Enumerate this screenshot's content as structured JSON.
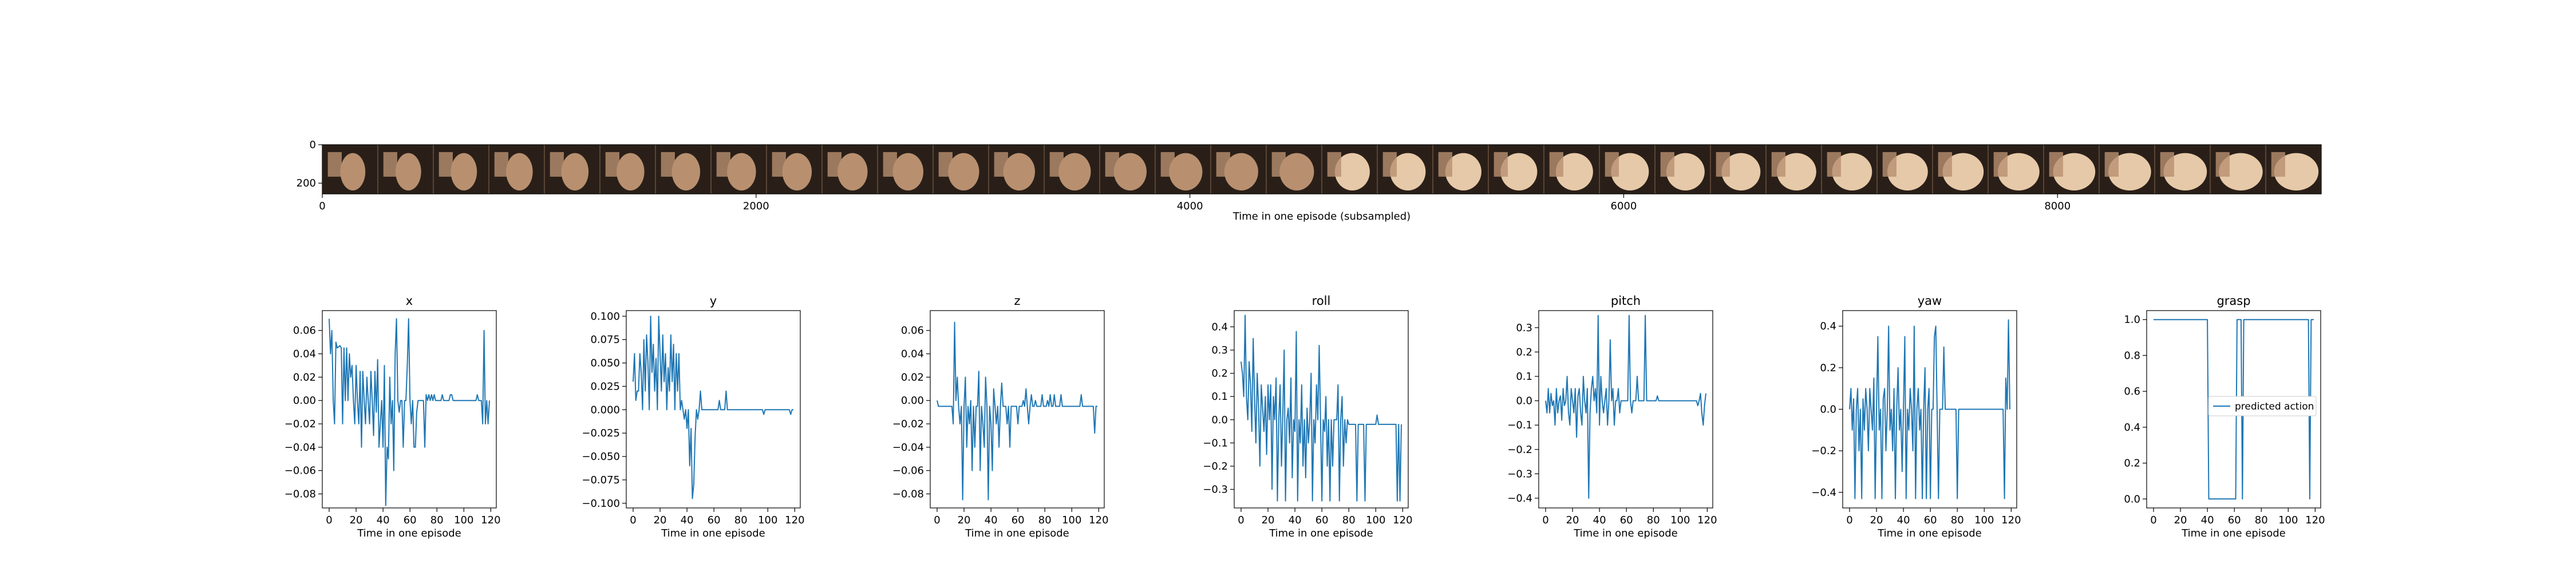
{
  "chart_data": [
    {
      "type": "image-strip",
      "xlabel": "Time in one episode (subsampled)",
      "xlim": [
        0,
        9216
      ],
      "ylim": [
        256,
        0
      ],
      "xticks": [
        0,
        2000,
        4000,
        6000,
        8000
      ],
      "yticks": [
        0,
        200
      ],
      "frames": 36,
      "colors": {
        "background": "#5a4535",
        "mid": "#b89070",
        "light": "#e6c9a8",
        "dark": "#2a1f18"
      }
    },
    {
      "type": "line",
      "title": "x",
      "xlabel": "Time in one episode",
      "ylim": [
        -0.092,
        0.077
      ],
      "xticks": [
        0,
        20,
        40,
        60,
        80,
        100,
        120
      ],
      "yticks": [
        0.06,
        0.04,
        0.02,
        0.0,
        -0.02,
        -0.04,
        -0.06,
        -0.08
      ],
      "ytick_labels": [
        "0.06",
        "0.04",
        "0.02",
        "0.00",
        "−0.02",
        "−0.04",
        "−0.06",
        "−0.08"
      ],
      "y": [
        0.07,
        0.04,
        0.06,
        0.0,
        -0.02,
        0.05,
        0.045,
        0.046,
        0.047,
        0.045,
        -0.02,
        0.045,
        0.0,
        0.045,
        0.0,
        0.04,
        0.02,
        0.03,
        0.0,
        -0.02,
        0.03,
        0.0,
        -0.02,
        0.025,
        -0.04,
        0.025,
        0.0,
        -0.02,
        0.02,
        0.0,
        -0.02,
        0.025,
        0.0,
        -0.03,
        0.025,
        -0.01,
        0.035,
        -0.04,
        -0.02,
        0.0,
        -0.04,
        0.03,
        -0.09,
        -0.04,
        -0.05,
        0.02,
        -0.02,
        0.0,
        -0.06,
        0.04,
        0.07,
        0.0,
        -0.01,
        0.0,
        0.0,
        -0.04,
        0.0,
        0.0,
        0.03,
        0.07,
        0.0,
        -0.02,
        0.0,
        -0.04,
        -0.04,
        -0.01,
        0.0,
        0.0,
        0.0,
        0.0,
        0.0,
        -0.04,
        0.005,
        0.0,
        0.005,
        0.0,
        0.005,
        0.0,
        0.005,
        0.0,
        0.0,
        0.0,
        0.0,
        0.0,
        0.005,
        0.0,
        0.0,
        0.0,
        0.0,
        0.0,
        0.005,
        0.005,
        0.0,
        0.0,
        0.0,
        0.0,
        0.0,
        0.0,
        0.0,
        0.0,
        0.0,
        0.0,
        0.0,
        0.0,
        0.0,
        0.0,
        0.0,
        0.0,
        0.0,
        0.0,
        0.005,
        0.0,
        0.0,
        0.0,
        -0.02,
        0.06,
        -0.02,
        0.0,
        -0.02,
        0.0
      ]
    },
    {
      "type": "line",
      "title": "y",
      "xlabel": "Time in one episode",
      "ylim": [
        -0.105,
        0.106
      ],
      "xticks": [
        0,
        20,
        40,
        60,
        80,
        100,
        120
      ],
      "yticks": [
        0.1,
        0.075,
        0.05,
        0.025,
        0.0,
        -0.025,
        -0.05,
        -0.075,
        -0.1
      ],
      "ytick_labels": [
        "0.100",
        "0.075",
        "0.050",
        "0.025",
        "0.000",
        "−0.025",
        "−0.050",
        "−0.075",
        "−0.100"
      ],
      "y": [
        0.03,
        0.06,
        0.01,
        0.02,
        0.02,
        0.06,
        0.04,
        0.0,
        0.075,
        0.02,
        0.08,
        0.05,
        0.0,
        0.1,
        0.04,
        0.07,
        0.02,
        0.055,
        0.0,
        0.1,
        0.06,
        0.02,
        0.08,
        0.03,
        0.06,
        0.0,
        0.045,
        0.02,
        0.08,
        0.03,
        0.07,
        0.0,
        0.06,
        0.02,
        0.06,
        0.0,
        0.01,
        0.0,
        -0.01,
        0.0,
        -0.02,
        0.0,
        -0.06,
        -0.02,
        -0.095,
        -0.08,
        -0.03,
        0.0,
        -0.01,
        0.0,
        0.02,
        0.0,
        0.0,
        0.0,
        0.0,
        0.0,
        0.0,
        0.0,
        0.0,
        0.0,
        0.0,
        0.0,
        0.0,
        0.0,
        0.01,
        0.0,
        0.0,
        0.0,
        0.0,
        0.02,
        0.0,
        0.0,
        0.0,
        0.0,
        0.0,
        0.0,
        0.0,
        0.0,
        0.0,
        0.0,
        0.0,
        0.0,
        0.0,
        0.0,
        0.0,
        0.0,
        0.0,
        0.0,
        0.0,
        0.0,
        0.0,
        0.0,
        0.0,
        0.0,
        0.0,
        0.0,
        0.0,
        -0.005,
        0.0,
        0.0,
        0.0,
        0.0,
        0.0,
        0.0,
        0.0,
        0.0,
        0.0,
        0.0,
        0.0,
        0.0,
        0.0,
        0.0,
        0.0,
        0.0,
        0.0,
        0.0,
        0.0,
        -0.005,
        0.0,
        0.0
      ]
    },
    {
      "type": "line",
      "title": "z",
      "xlabel": "Time in one episode",
      "ylim": [
        -0.092,
        0.077
      ],
      "xticks": [
        0,
        20,
        40,
        60,
        80,
        100,
        120
      ],
      "yticks": [
        0.06,
        0.04,
        0.02,
        0.0,
        -0.02,
        -0.04,
        -0.06,
        -0.08
      ],
      "ytick_labels": [
        "0.06",
        "0.04",
        "0.02",
        "0.00",
        "−0.02",
        "−0.04",
        "−0.06",
        "−0.08"
      ],
      "y": [
        0.0,
        -0.005,
        -0.005,
        -0.005,
        -0.005,
        -0.005,
        -0.005,
        -0.005,
        -0.005,
        -0.005,
        -0.005,
        -0.005,
        -0.02,
        0.067,
        0.0,
        0.02,
        -0.005,
        -0.02,
        -0.005,
        -0.085,
        -0.005,
        0.02,
        -0.04,
        -0.005,
        -0.02,
        0.0,
        -0.06,
        -0.005,
        -0.04,
        -0.005,
        -0.005,
        0.025,
        -0.06,
        -0.005,
        -0.02,
        -0.04,
        0.02,
        -0.005,
        -0.085,
        -0.005,
        -0.02,
        -0.06,
        0.01,
        -0.005,
        -0.02,
        -0.005,
        -0.04,
        -0.005,
        0.015,
        -0.005,
        -0.005,
        -0.005,
        -0.02,
        -0.005,
        -0.04,
        -0.005,
        -0.005,
        -0.005,
        -0.005,
        -0.005,
        -0.02,
        -0.005,
        -0.005,
        -0.005,
        0.0,
        -0.005,
        0.01,
        -0.005,
        -0.02,
        -0.005,
        0.005,
        -0.005,
        -0.005,
        0.0,
        -0.005,
        -0.005,
        -0.005,
        -0.005,
        0.005,
        -0.005,
        -0.005,
        -0.005,
        0.0,
        -0.005,
        0.005,
        -0.005,
        -0.005,
        0.005,
        -0.005,
        -0.005,
        -0.005,
        -0.005,
        0.005,
        -0.005,
        -0.005,
        -0.005,
        -0.005,
        -0.005,
        -0.005,
        -0.005,
        -0.005,
        -0.005,
        -0.005,
        -0.005,
        -0.005,
        -0.005,
        -0.005,
        0.005,
        -0.005,
        -0.005,
        -0.005,
        -0.005,
        -0.005,
        -0.005,
        -0.005,
        -0.005,
        -0.005,
        -0.028,
        -0.005,
        -0.005
      ]
    },
    {
      "type": "line",
      "title": "roll",
      "xlabel": "Time in one episode",
      "ylim": [
        -0.38,
        0.47
      ],
      "xticks": [
        0,
        20,
        40,
        60,
        80,
        100,
        120
      ],
      "yticks": [
        0.4,
        0.3,
        0.2,
        0.1,
        0.0,
        -0.1,
        -0.2,
        -0.3
      ],
      "ytick_labels": [
        "0.4",
        "0.3",
        "0.2",
        "0.1",
        "0.0",
        "−0.1",
        "−0.2",
        "−0.3"
      ],
      "y": [
        0.25,
        0.2,
        0.1,
        0.45,
        0.1,
        0.0,
        0.25,
        0.15,
        -0.05,
        0.35,
        0.1,
        -0.1,
        0.2,
        0.05,
        -0.2,
        0.15,
        0.05,
        -0.05,
        0.1,
        -0.15,
        0.15,
        0.0,
        0.15,
        -0.3,
        0.1,
        0.0,
        0.18,
        -0.35,
        0.0,
        0.15,
        -0.2,
        0.02,
        0.3,
        -0.35,
        0.0,
        0.05,
        -0.1,
        0.18,
        -0.25,
        0.0,
        -0.05,
        0.38,
        -0.35,
        0.0,
        -0.1,
        0.15,
        -0.2,
        0.0,
        -0.25,
        0.05,
        -0.1,
        0.0,
        0.2,
        -0.35,
        0.0,
        -0.1,
        0.15,
        0.0,
        0.32,
        0.0,
        -0.35,
        0.0,
        -0.05,
        0.1,
        -0.2,
        0.0,
        -0.35,
        0.0,
        -0.2,
        0.0,
        0.0,
        0.0,
        0.15,
        -0.35,
        0.0,
        0.1,
        -0.2,
        0.0,
        -0.1,
        0.0,
        -0.02,
        -0.02,
        -0.02,
        -0.02,
        -0.02,
        -0.02,
        -0.35,
        -0.02,
        -0.02,
        -0.02,
        -0.02,
        -0.02,
        -0.35,
        -0.02,
        -0.02,
        -0.02,
        -0.02,
        -0.02,
        -0.02,
        -0.02,
        -0.02,
        0.02,
        -0.02,
        -0.02,
        -0.02,
        -0.02,
        -0.02,
        -0.02,
        -0.02,
        -0.02,
        -0.02,
        -0.02,
        -0.02,
        -0.02,
        -0.02,
        -0.02,
        -0.35,
        -0.02,
        -0.35,
        -0.02
      ]
    },
    {
      "type": "line",
      "title": "pitch",
      "xlabel": "Time in one episode",
      "ylim": [
        -0.44,
        0.37
      ],
      "xticks": [
        0,
        20,
        40,
        60,
        80,
        100,
        120
      ],
      "yticks": [
        0.3,
        0.2,
        0.1,
        0.0,
        -0.1,
        -0.2,
        -0.3,
        -0.4
      ],
      "ytick_labels": [
        "0.3",
        "0.2",
        "0.1",
        "0.0",
        "−0.1",
        "−0.2",
        "−0.3",
        "−0.4"
      ],
      "y": [
        0.0,
        -0.05,
        0.05,
        -0.05,
        0.03,
        -0.02,
        0.0,
        -0.1,
        0.05,
        -0.05,
        0.0,
        0.02,
        -0.08,
        0.05,
        -0.02,
        0.0,
        0.1,
        -0.05,
        -0.1,
        0.05,
        0.0,
        -0.05,
        0.05,
        -0.15,
        0.02,
        0.05,
        -0.05,
        -0.1,
        0.1,
        0.0,
        -0.05,
        0.05,
        -0.4,
        -0.05,
        0.05,
        0.1,
        0.0,
        0.05,
        -0.05,
        0.35,
        -0.1,
        0.1,
        0.0,
        -0.05,
        0.0,
        0.05,
        -0.1,
        0.0,
        0.25,
        0.0,
        0.05,
        -0.1,
        0.0,
        0.0,
        0.05,
        -0.05,
        0.0,
        0.0,
        0.0,
        0.0,
        0.0,
        0.0,
        0.35,
        0.0,
        -0.05,
        0.0,
        0.0,
        0.0,
        0.1,
        0.0,
        0.0,
        0.0,
        0.0,
        0.0,
        0.35,
        0.0,
        0.0,
        0.0,
        0.0,
        0.0,
        0.0,
        0.0,
        0.0,
        0.02,
        0.0,
        0.0,
        0.0,
        0.0,
        0.0,
        0.0,
        0.0,
        0.0,
        0.0,
        0.0,
        0.0,
        0.0,
        0.0,
        0.0,
        0.0,
        0.0,
        0.0,
        0.0,
        0.0,
        0.0,
        0.0,
        0.0,
        0.0,
        0.0,
        0.0,
        0.0,
        0.0,
        0.0,
        0.0,
        -0.02,
        0.0,
        0.03,
        -0.05,
        -0.1,
        -0.02,
        0.03
      ]
    },
    {
      "type": "line",
      "title": "yaw",
      "xlabel": "Time in one episode",
      "ylim": [
        -0.475,
        0.475
      ],
      "xticks": [
        0,
        20,
        40,
        60,
        80,
        100,
        120
      ],
      "yticks": [
        0.4,
        0.2,
        0.0,
        -0.2,
        -0.4
      ],
      "ytick_labels": [
        "0.4",
        "0.2",
        "0.0",
        "−0.2",
        "−0.4"
      ],
      "y": [
        0.0,
        0.1,
        -0.1,
        0.05,
        -0.43,
        0.0,
        0.1,
        -0.2,
        0.0,
        -0.43,
        0.05,
        -0.1,
        0.1,
        0.0,
        -0.2,
        0.1,
        0.0,
        -0.1,
        0.15,
        -0.43,
        0.0,
        0.35,
        -0.1,
        0.0,
        -0.43,
        0.05,
        0.1,
        -0.2,
        0.0,
        0.4,
        -0.1,
        0.0,
        -0.2,
        0.1,
        -0.43,
        0.0,
        0.2,
        -0.1,
        0.0,
        -0.3,
        0.0,
        0.35,
        -0.43,
        0.0,
        -0.1,
        0.1,
        0.0,
        -0.2,
        0.4,
        -0.43,
        0.0,
        0.1,
        -0.1,
        0.0,
        -0.43,
        0.0,
        0.2,
        -0.43,
        0.0,
        0.1,
        -0.43,
        0.0,
        0.0,
        0.35,
        0.4,
        0.0,
        -0.43,
        0.0,
        0.0,
        0.0,
        0.3,
        0.0,
        0.0,
        0.0,
        0.0,
        0.0,
        0.0,
        0.0,
        0.0,
        0.0,
        -0.43,
        0.0,
        0.0,
        0.0,
        0.0,
        0.0,
        0.0,
        0.0,
        0.0,
        0.0,
        0.0,
        0.0,
        0.0,
        0.0,
        0.0,
        0.0,
        0.0,
        0.0,
        0.0,
        0.0,
        0.0,
        0.0,
        0.0,
        0.0,
        0.0,
        0.0,
        0.0,
        0.0,
        0.0,
        0.0,
        0.0,
        0.0,
        0.0,
        0.0,
        0.0,
        -0.43,
        0.15,
        0.0,
        0.43,
        0.0
      ]
    },
    {
      "type": "line",
      "title": "grasp",
      "xlabel": "Time in one episode",
      "ylim": [
        -0.05,
        1.05
      ],
      "xticks": [
        0,
        20,
        40,
        60,
        80,
        100,
        120
      ],
      "yticks": [
        1.0,
        0.8,
        0.6,
        0.4,
        0.2,
        0.0
      ],
      "ytick_labels": [
        "1.0",
        "0.8",
        "0.6",
        "0.4",
        "0.2",
        "0.0"
      ],
      "series": [
        {
          "name": "predicted action"
        }
      ],
      "legend": "right",
      "y": [
        1,
        1,
        1,
        1,
        1,
        1,
        1,
        1,
        1,
        1,
        1,
        1,
        1,
        1,
        1,
        1,
        1,
        1,
        1,
        1,
        1,
        1,
        1,
        1,
        1,
        1,
        1,
        1,
        1,
        1,
        1,
        1,
        1,
        1,
        1,
        1,
        1,
        1,
        1,
        1,
        1,
        0,
        0,
        0,
        0,
        0,
        0,
        0,
        0,
        0,
        0,
        0,
        0,
        0,
        0,
        0,
        0,
        0,
        0,
        0,
        0,
        0,
        1,
        1,
        1,
        1,
        0,
        1,
        1,
        1,
        1,
        1,
        1,
        1,
        1,
        1,
        1,
        1,
        1,
        1,
        1,
        1,
        1,
        1,
        1,
        1,
        1,
        1,
        1,
        1,
        1,
        1,
        1,
        1,
        1,
        1,
        1,
        1,
        1,
        1,
        1,
        1,
        1,
        1,
        1,
        1,
        1,
        1,
        1,
        1,
        1,
        1,
        1,
        1,
        1,
        1,
        0,
        1,
        1,
        1
      ]
    }
  ],
  "style": {
    "line_color": "#1f77b4",
    "axis_color": "#000000"
  }
}
